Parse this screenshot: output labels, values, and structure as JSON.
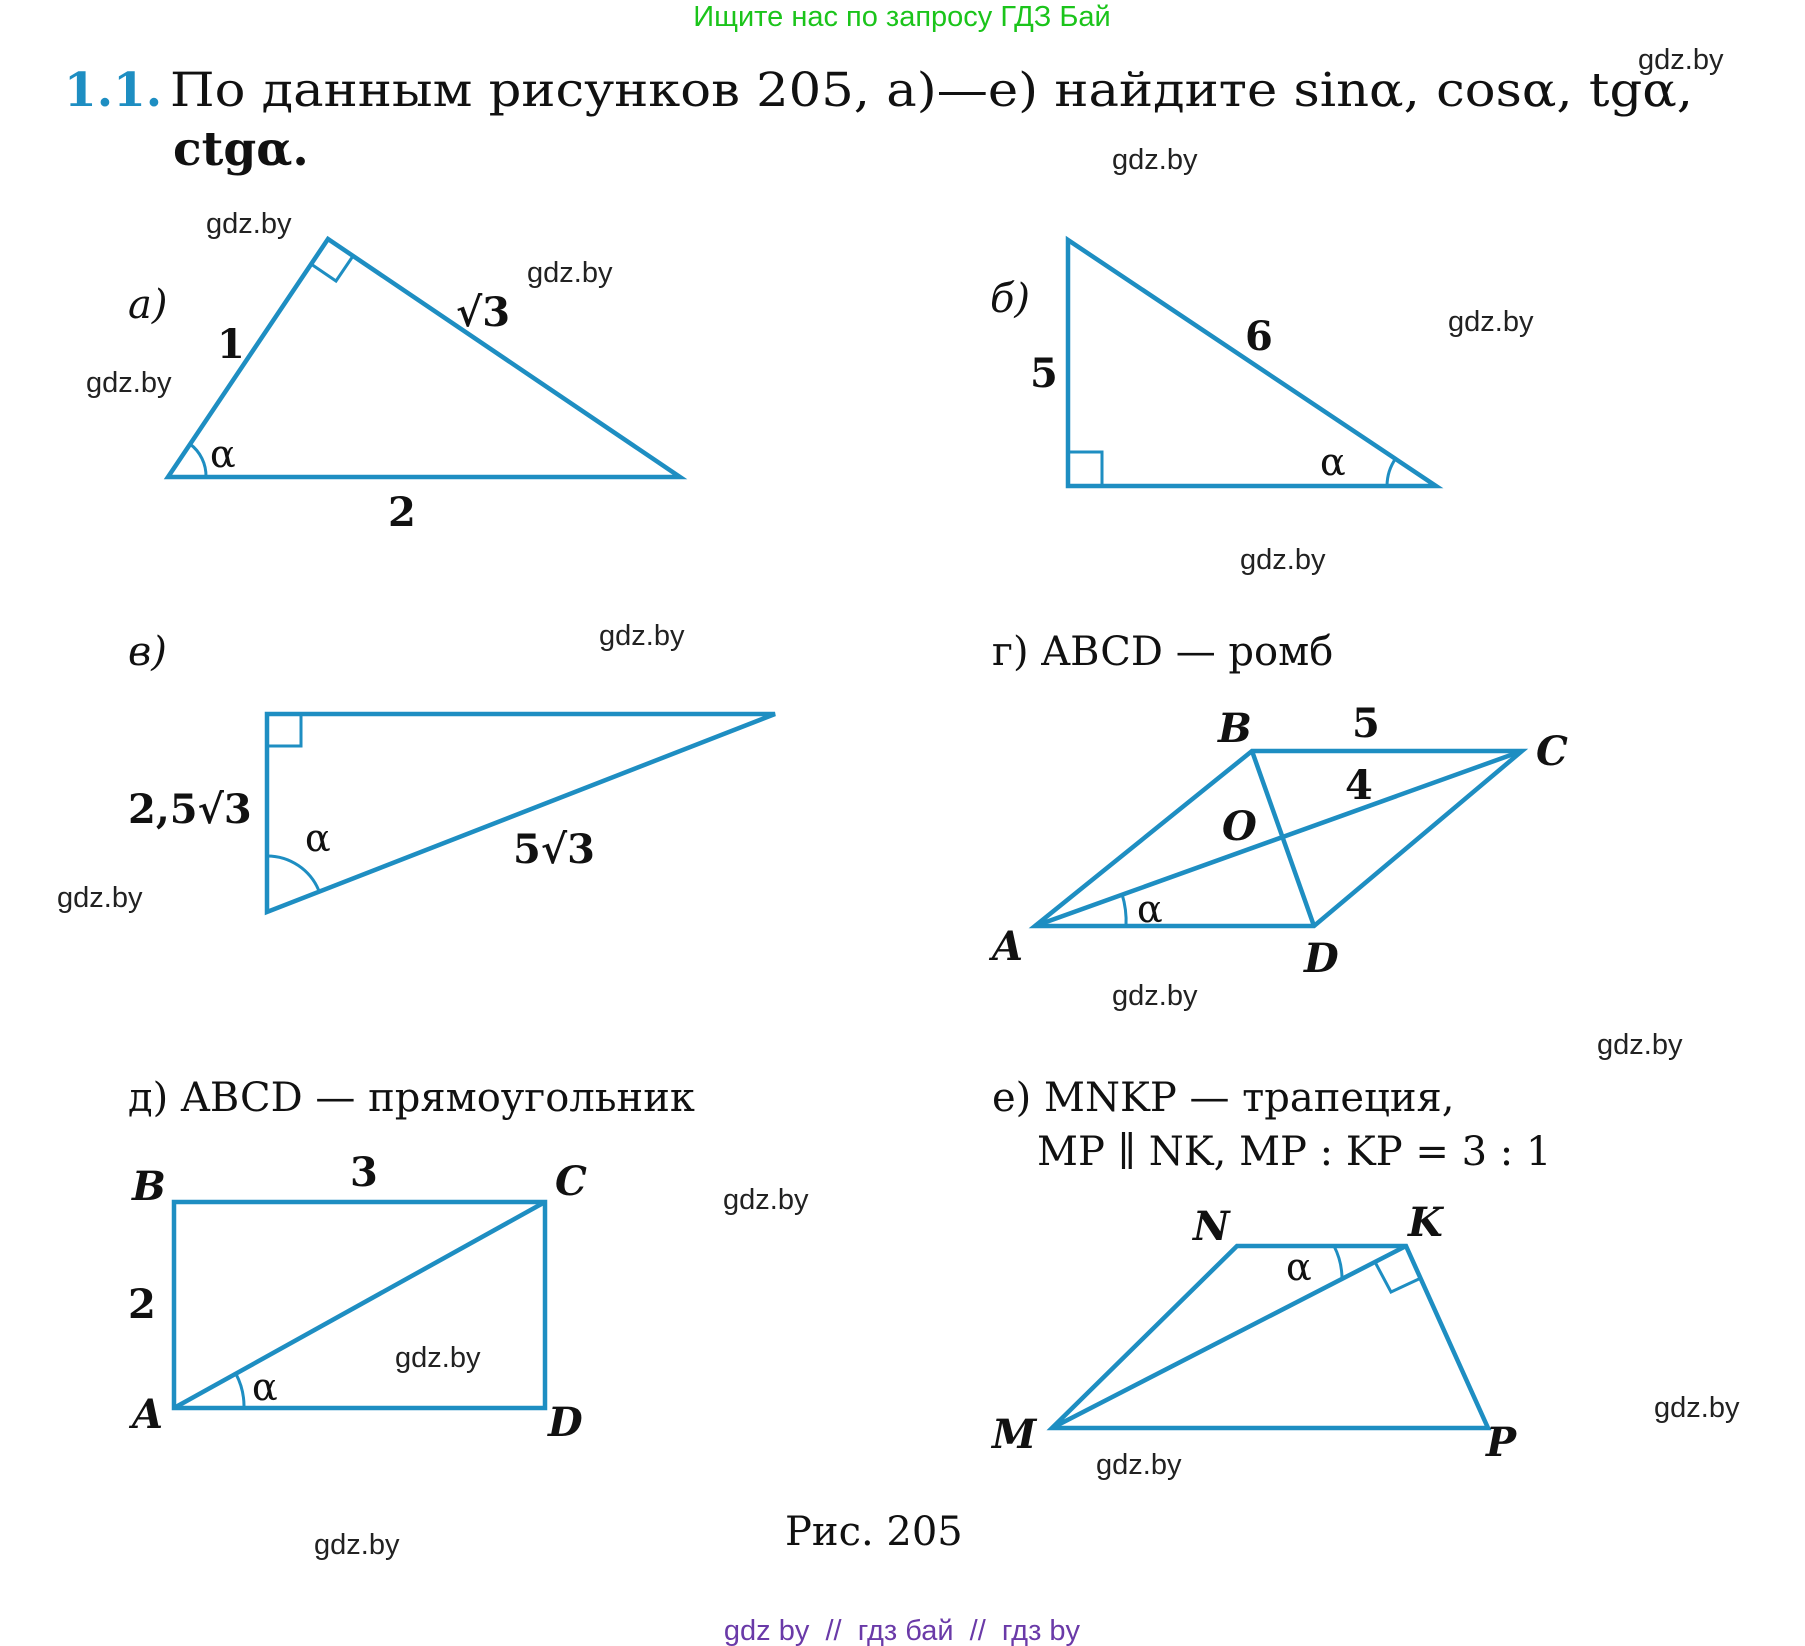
{
  "header": {
    "promo": "Ищите нас по запросу ГДЗ Бай"
  },
  "problem": {
    "number": "1.1.",
    "text_line1": "По данным рисунков 205, а)—е) найдите sinα, cosα, tgα,",
    "text_line2": "ctgα."
  },
  "colors": {
    "shape": "#1e8ec2",
    "number": "#1e8ec2",
    "promo": "#1bc41b",
    "footer": "#6a3aa8"
  },
  "figures": {
    "a": {
      "label": "а)",
      "side1": "1",
      "side2": "√3",
      "base": "2",
      "angle": "α"
    },
    "b": {
      "label": "б)",
      "leg": "5",
      "hyp": "6",
      "angle": "α"
    },
    "v": {
      "label": "в)",
      "leg": "2,5√3",
      "hyp": "5√3",
      "angle": "α"
    },
    "g": {
      "label": "г) ABCD — ромб",
      "A": "A",
      "B": "B",
      "C": "C",
      "D": "D",
      "O": "O",
      "side": "5",
      "half_diag": "4",
      "angle": "α"
    },
    "d": {
      "label": "д) ABCD — прямоугольник",
      "A": "A",
      "B": "B",
      "C": "C",
      "D": "D",
      "top": "3",
      "left": "2",
      "angle": "α"
    },
    "e": {
      "label_line1": "е) MNKP — трапеция,",
      "label_line2": "MP ∥ NK, MP : KP = 3 : 1",
      "M": "M",
      "N": "N",
      "K": "K",
      "P": "P",
      "angle": "α"
    }
  },
  "caption": "Рис. 205",
  "watermark": "gdz.by",
  "footer": "gdz by  //  гдз бай  //  гдз by"
}
